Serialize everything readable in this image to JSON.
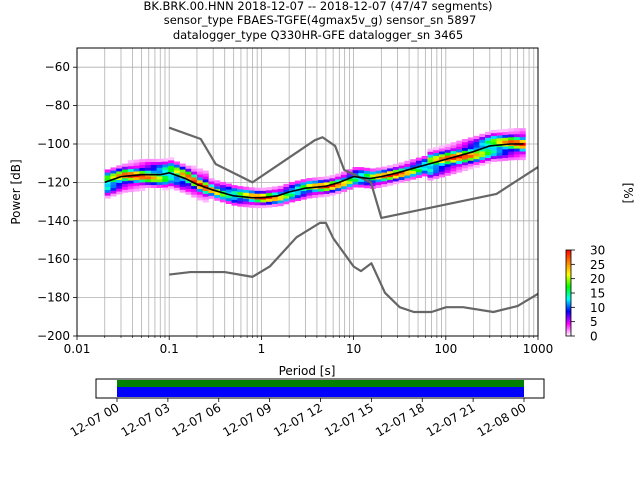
{
  "title": {
    "line1": "BK.BRK.00.HNN   2018-12-07 -- 2018-12-07  (47/47 segments)",
    "line2": "sensor_type FBAES-TGFE(4gmax5v_g) sensor_sn 5897",
    "line3": "datalogger_type Q330HR-GFE datalogger_sn 3465"
  },
  "chart_data": {
    "type": "heatmap",
    "xlabel": "Period [s]",
    "ylabel": "Power [dB]",
    "x_scale": "log",
    "xlim": [
      0.01,
      1000
    ],
    "ylim": [
      -200,
      -50
    ],
    "grid": true,
    "x_ticks": [
      {
        "value": 0.01,
        "label": "0.01"
      },
      {
        "value": 0.1,
        "label": "0.1"
      },
      {
        "value": 1,
        "label": "1"
      },
      {
        "value": 10,
        "label": "10"
      },
      {
        "value": 100,
        "label": "100"
      },
      {
        "value": 1000,
        "label": "1000"
      }
    ],
    "y_ticks": [
      {
        "value": -60,
        "label": "−60"
      },
      {
        "value": -80,
        "label": "−80"
      },
      {
        "value": -100,
        "label": "−100"
      },
      {
        "value": -120,
        "label": "−120"
      },
      {
        "value": -140,
        "label": "−140"
      },
      {
        "value": -160,
        "label": "−160"
      },
      {
        "value": -180,
        "label": "−180"
      },
      {
        "value": -200,
        "label": "−200"
      }
    ],
    "mode_curve": {
      "period": [
        0.02,
        0.03,
        0.05,
        0.08,
        0.1,
        0.15,
        0.2,
        0.3,
        0.5,
        0.8,
        1,
        1.5,
        2,
        3,
        5,
        7,
        10,
        15,
        20,
        30,
        50,
        100,
        200,
        300,
        500,
        700
      ],
      "power": [
        -120,
        -117,
        -116,
        -116,
        -115,
        -118,
        -121,
        -124,
        -127,
        -128,
        -128,
        -127,
        -125,
        -123,
        -122,
        -120,
        -117,
        -118,
        -117,
        -115,
        -112,
        -108,
        -104,
        -101,
        -100,
        -100
      ]
    },
    "noise_models": {
      "color": "#666666",
      "high": {
        "period": [
          0.1,
          0.22,
          0.32,
          0.8,
          3.8,
          4.6,
          6.3,
          7.9,
          15.4,
          20,
          354.8,
          1000
        ],
        "power": [
          -91.5,
          -97.4,
          -110.5,
          -120,
          -98,
          -96.5,
          -101,
          -113.5,
          -120,
          -138.5,
          -126,
          -112
        ]
      },
      "low": {
        "period": [
          0.1,
          0.17,
          0.4,
          0.8,
          1.24,
          2.4,
          4.3,
          5,
          6,
          10,
          12,
          15.6,
          21.9,
          31.6,
          45,
          70,
          101,
          154,
          328,
          600,
          1000
        ],
        "power": [
          -168,
          -166.7,
          -166.7,
          -169.2,
          -163.7,
          -148.6,
          -141.1,
          -141.1,
          -149,
          -163.8,
          -166.2,
          -162.1,
          -177.5,
          -185,
          -187.5,
          -187.5,
          -185,
          -185,
          -187.5,
          -184.4,
          -178
        ]
      }
    },
    "colorbar": {
      "label": "[%]",
      "range": [
        0,
        30
      ],
      "ticks": [
        0,
        5,
        10,
        15,
        20,
        25,
        30
      ],
      "colormap": "pqlx",
      "colors": [
        "#ffffff",
        "#ff00ff",
        "#0000ff",
        "#00ffff",
        "#00ff00",
        "#ffff00",
        "#ff8000",
        "#ff0000"
      ]
    },
    "time_axis": {
      "ticks": [
        "12-07 00",
        "12-07 03",
        "12-07 06",
        "12-07 09",
        "12-07 12",
        "12-07 15",
        "12-07 18",
        "12-07 21",
        "12-08 00"
      ],
      "coverage_colors": {
        "data": "#008000",
        "psd": "#0000ff"
      }
    }
  }
}
